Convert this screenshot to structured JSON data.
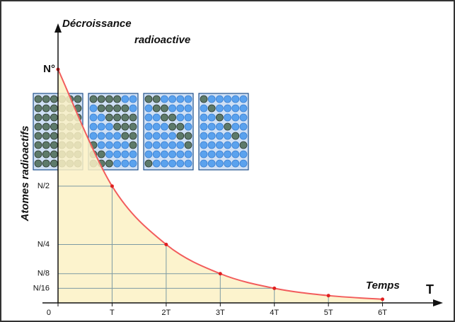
{
  "chart_data": {
    "type": "line",
    "title": [
      "Décroissance",
      "radioactive"
    ],
    "y_label": "Atomes radioactifs",
    "x_label": "Temps",
    "x_axis_symbol": "T",
    "x": [
      0,
      1,
      2,
      3,
      4,
      5,
      6
    ],
    "series": [
      {
        "color": "#f25c5c",
        "values": [
          1,
          0.5,
          0.25,
          0.125,
          0.0625,
          0.03125,
          0.015625
        ]
      }
    ],
    "xlim": [
      0,
      7
    ],
    "ylim": [
      0,
      1
    ],
    "xticks": [
      0,
      {
        "value": 1,
        "label": "T"
      },
      {
        "value": 2,
        "label": "2T"
      },
      {
        "value": 3,
        "label": "3T"
      },
      {
        "value": 4,
        "label": "4T"
      },
      {
        "value": 5,
        "label": "5T"
      },
      {
        "value": 6,
        "label": "6T"
      }
    ],
    "yticks": [
      {
        "value": 0.0625,
        "label": "N/16"
      },
      {
        "value": 0.125,
        "label": "N/8"
      },
      {
        "value": 0.25,
        "label": "N/4"
      },
      {
        "value": 0.5,
        "label": "N/2"
      },
      {
        "value": 1,
        "label": "N°"
      }
    ],
    "area_color": "#fbf1c4"
  }
}
